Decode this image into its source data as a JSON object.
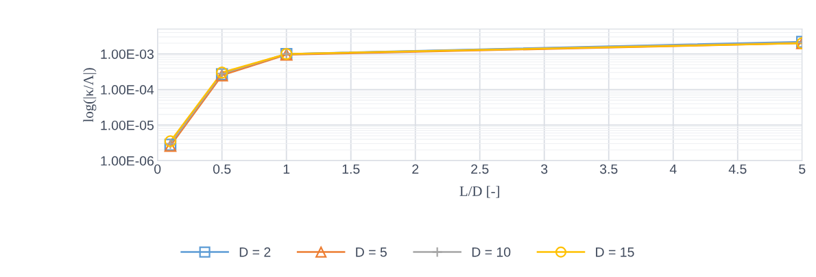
{
  "chart_data": {
    "type": "line",
    "xlabel": "L/D [-]",
    "ylabel": "log(|κ/Λ|)",
    "x": [
      0.1,
      0.5,
      1,
      5
    ],
    "series": [
      {
        "name": "D = 2",
        "color": "#5b9bd5",
        "marker": "square",
        "values": [
          2.8e-06,
          0.00027,
          0.001,
          0.0022
        ]
      },
      {
        "name": "D = 5",
        "color": "#ed7d31",
        "marker": "triangle",
        "values": [
          2.6e-06,
          0.00025,
          0.00095,
          0.002
        ]
      },
      {
        "name": "D = 10",
        "color": "#a5a5a5",
        "marker": "cross",
        "values": [
          3e-06,
          0.00028,
          0.001,
          0.0021
        ]
      },
      {
        "name": "D = 15",
        "color": "#ffc000",
        "marker": "circle",
        "values": [
          3.5e-06,
          0.0003,
          0.001,
          0.002
        ]
      }
    ],
    "log": "y",
    "xlim": [
      0,
      5
    ],
    "xticks": [
      0,
      0.5,
      1,
      1.5,
      2,
      2.5,
      3,
      3.5,
      4,
      4.5,
      5
    ],
    "ylim": [
      1e-06,
      0.005
    ],
    "yticks": [
      {
        "value": 1e-06,
        "label": "1.00E-06"
      },
      {
        "value": 1e-05,
        "label": "1.00E-05"
      },
      {
        "value": 0.0001,
        "label": "1.00E-04"
      },
      {
        "value": 0.001,
        "label": "1.00E-03"
      }
    ],
    "grid": true,
    "legend": "bottom",
    "line_style": "solid"
  }
}
